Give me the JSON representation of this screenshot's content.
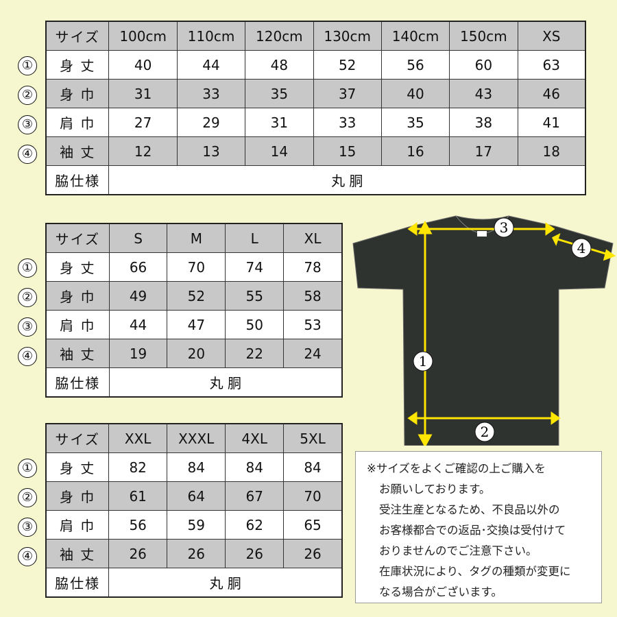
{
  "colors": {
    "background": "#f6f6cf",
    "shaded_row": "#c8c8c8",
    "shirt": "#2f3330",
    "arrow": "#ffe600"
  },
  "tables": [
    {
      "header": "サイズ",
      "sizes": [
        "100cm",
        "110cm",
        "120cm",
        "130cm",
        "140cm",
        "150cm",
        "XS"
      ],
      "rows": [
        {
          "num": "①",
          "label": "身 丈",
          "values": [
            "40",
            "44",
            "48",
            "52",
            "56",
            "60",
            "63"
          ]
        },
        {
          "num": "②",
          "label": "身 巾",
          "values": [
            "31",
            "33",
            "35",
            "37",
            "40",
            "43",
            "46"
          ]
        },
        {
          "num": "③",
          "label": "肩 巾",
          "values": [
            "27",
            "29",
            "31",
            "33",
            "35",
            "38",
            "41"
          ]
        },
        {
          "num": "④",
          "label": "袖 丈",
          "values": [
            "12",
            "13",
            "14",
            "15",
            "16",
            "17",
            "18"
          ]
        }
      ],
      "side_label": "脇仕様",
      "side_value": "丸 胴"
    },
    {
      "header": "サイズ",
      "sizes": [
        "S",
        "M",
        "L",
        "XL"
      ],
      "rows": [
        {
          "num": "①",
          "label": "身 丈",
          "values": [
            "66",
            "70",
            "74",
            "78"
          ]
        },
        {
          "num": "②",
          "label": "身 巾",
          "values": [
            "49",
            "52",
            "55",
            "58"
          ]
        },
        {
          "num": "③",
          "label": "肩 巾",
          "values": [
            "44",
            "47",
            "50",
            "53"
          ]
        },
        {
          "num": "④",
          "label": "袖 丈",
          "values": [
            "19",
            "20",
            "22",
            "24"
          ]
        }
      ],
      "side_label": "脇仕様",
      "side_value": "丸 胴"
    },
    {
      "header": "サイズ",
      "sizes": [
        "XXL",
        "XXXL",
        "4XL",
        "5XL"
      ],
      "rows": [
        {
          "num": "①",
          "label": "身 丈",
          "values": [
            "82",
            "84",
            "84",
            "84"
          ]
        },
        {
          "num": "②",
          "label": "身 巾",
          "values": [
            "61",
            "64",
            "67",
            "70"
          ]
        },
        {
          "num": "③",
          "label": "肩 巾",
          "values": [
            "56",
            "59",
            "62",
            "65"
          ]
        },
        {
          "num": "④",
          "label": "袖 丈",
          "values": [
            "26",
            "26",
            "26",
            "26"
          ]
        }
      ],
      "side_label": "脇仕様",
      "side_value": "丸 胴"
    }
  ],
  "diagram": {
    "markers": [
      "1",
      "2",
      "3",
      "4"
    ]
  },
  "notes": [
    "※サイズをよくご確認の上ご購入を",
    "お願いしております。",
    "受注生産となるため、不良品以外の",
    "お客様都合での返品･交換は受付けて",
    "おりませんのでご注意下さい。",
    "在庫状況により、タグの種類が変更に",
    "なる場合がございます。"
  ]
}
